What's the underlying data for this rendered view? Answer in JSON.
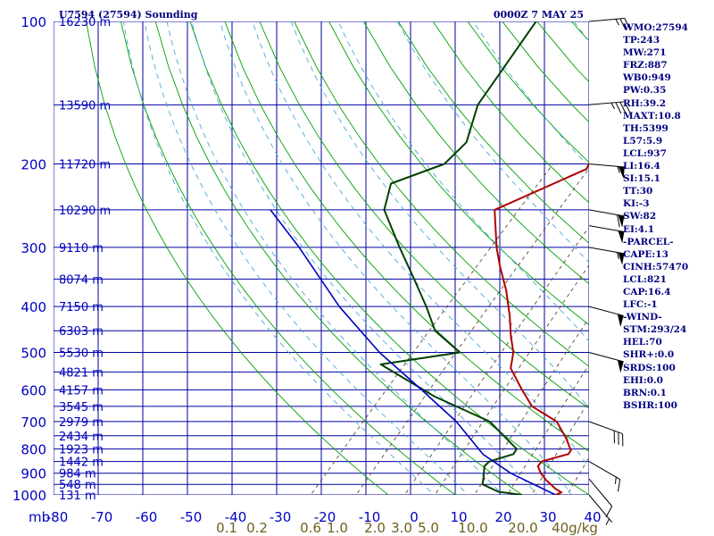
{
  "header": {
    "station": "U7594 (27594) Sounding",
    "time": "0000Z  7 MAY 25"
  },
  "indices": [
    "WMO:27594",
    "TP:243",
    "MW:271",
    "FRZ:887",
    "WB0:949",
    "PW:0.35",
    "RH:39.2",
    "MAXT:10.8",
    "TH:5399",
    "L57:5.9",
    "LCL:937",
    "LI:16.4",
    "SI:15.1",
    "TT:30",
    "KI:-3",
    "SW:82",
    "EI:4.1",
    "-PARCEL-",
    "CAPE:13",
    "CINH:57470",
    "LCL:821",
    "CAP:16.4",
    "LFC:-1",
    "-WIND-",
    "STM:293/24",
    "HEL:70",
    "SHR+:0.0",
    "SRDS:100",
    "EHI:0.0",
    "BRN:0.1",
    "BSHR:100"
  ],
  "colors": {
    "isobar": "#0000a0",
    "isotherm": "#00a000",
    "temperature": "#b00000",
    "dewpoint": "#004000",
    "parcel": "#0000c0",
    "mixing_ratio": "#5a4a30",
    "moist_adiabat": "#4aa8d8"
  },
  "chart_data": {
    "type": "line",
    "diagram": "skew-t log-p",
    "title": "U7594 (27594) Sounding",
    "pressure_unit": "mb",
    "ylim": [
      1000,
      100
    ],
    "xlim": [
      -80,
      0
    ],
    "pressure_ticks": [
      100,
      200,
      300,
      400,
      500,
      600,
      700,
      800,
      900,
      1000
    ],
    "temperature_ticks": [
      -80,
      -70,
      -60,
      -50,
      -40,
      -30,
      -20,
      -10,
      0,
      10,
      20,
      30,
      40
    ],
    "xtick_labels": [
      "-80",
      "-70",
      "-60",
      "-50",
      "-40",
      "-30",
      "-20",
      "-10",
      "0",
      "10",
      "20",
      "30",
      "40"
    ],
    "mixing_ratio_labels": [
      "0.1",
      "0.2",
      "0.6",
      "1.0",
      "2.0",
      "3.0",
      "5.0",
      "10.0",
      "20.0",
      "40g/kg"
    ],
    "heights": [
      {
        "p": 100,
        "label": "16230 m"
      },
      {
        "p": 150,
        "label": "13590 m"
      },
      {
        "p": 200,
        "label": "11720 m"
      },
      {
        "p": 250,
        "label": "10290 m"
      },
      {
        "p": 300,
        "label": "9110 m"
      },
      {
        "p": 350,
        "label": "8074 m"
      },
      {
        "p": 400,
        "label": "7150 m"
      },
      {
        "p": 450,
        "label": "6303 m"
      },
      {
        "p": 500,
        "label": "5530 m"
      },
      {
        "p": 550,
        "label": "4821 m"
      },
      {
        "p": 600,
        "label": "4157 m"
      },
      {
        "p": 650,
        "label": "3545 m"
      },
      {
        "p": 700,
        "label": "2979 m"
      },
      {
        "p": 750,
        "label": "2434 m"
      },
      {
        "p": 800,
        "label": "1923 m"
      },
      {
        "p": 850,
        "label": "1442 m"
      },
      {
        "p": 900,
        "label": "984 m"
      },
      {
        "p": 950,
        "label": "548 m"
      },
      {
        "p": 1000,
        "label": "131 m"
      }
    ],
    "series": [
      {
        "key": "temperature",
        "points": [
          [
            1000,
            -5
          ],
          [
            988,
            -4.5
          ],
          [
            970,
            -6
          ],
          [
            930,
            -8.7
          ],
          [
            900,
            -10.5
          ],
          [
            870,
            -12
          ],
          [
            850,
            -12.2
          ],
          [
            820,
            -9.3
          ],
          [
            805,
            -9.5
          ],
          [
            760,
            -12
          ],
          [
            700,
            -16
          ],
          [
            650,
            -22
          ],
          [
            600,
            -26
          ],
          [
            540,
            -31
          ],
          [
            500,
            -33
          ],
          [
            460,
            -36
          ],
          [
            420,
            -39
          ],
          [
            370,
            -43.5
          ],
          [
            330,
            -48
          ],
          [
            300,
            -51.5
          ],
          [
            250,
            -57.5
          ],
          [
            205,
            -50
          ],
          [
            180,
            -52
          ],
          [
            150,
            -55
          ],
          [
            100,
            -62
          ]
        ]
      },
      {
        "key": "dewpoint",
        "points": [
          [
            1000,
            -10
          ],
          [
            985,
            -14
          ],
          [
            950,
            -17.5
          ],
          [
            900,
            -19
          ],
          [
            870,
            -20
          ],
          [
            850,
            -20
          ],
          [
            820,
            -17.5
          ],
          [
            800,
            -17.8
          ],
          [
            700,
            -26
          ],
          [
            620,
            -38
          ],
          [
            530,
            -51
          ],
          [
            500,
            -41
          ],
          [
            450,
            -48
          ],
          [
            400,
            -53
          ],
          [
            350,
            -59
          ],
          [
            300,
            -66
          ],
          [
            250,
            -74
          ],
          [
            220,
            -77
          ],
          [
            200,
            -72
          ],
          [
            180,
            -72
          ],
          [
            150,
            -76
          ],
          [
            100,
            -80
          ]
        ]
      },
      {
        "key": "parcel",
        "points": [
          [
            1000,
            -5
          ],
          [
            900,
            -15
          ],
          [
            821,
            -22
          ],
          [
            700,
            -31
          ],
          [
            600,
            -41
          ],
          [
            500,
            -53
          ],
          [
            400,
            -66
          ],
          [
            300,
            -81
          ],
          [
            250,
            -91
          ]
        ]
      }
    ],
    "winds": [
      {
        "p": 100,
        "dir": 265,
        "spd": 25
      },
      {
        "p": 150,
        "dir": 265,
        "spd": 35
      },
      {
        "p": 200,
        "dir": 275,
        "spd": 55
      },
      {
        "p": 250,
        "dir": 280,
        "spd": 60
      },
      {
        "p": 270,
        "dir": 280,
        "spd": 50
      },
      {
        "p": 300,
        "dir": 280,
        "spd": 55
      },
      {
        "p": 400,
        "dir": 285,
        "spd": 50
      },
      {
        "p": 500,
        "dir": 285,
        "spd": 50
      },
      {
        "p": 700,
        "dir": 290,
        "spd": 30
      },
      {
        "p": 850,
        "dir": 300,
        "spd": 15
      },
      {
        "p": 925,
        "dir": 320,
        "spd": 10
      },
      {
        "p": 1000,
        "dir": 320,
        "spd": 5
      }
    ]
  }
}
